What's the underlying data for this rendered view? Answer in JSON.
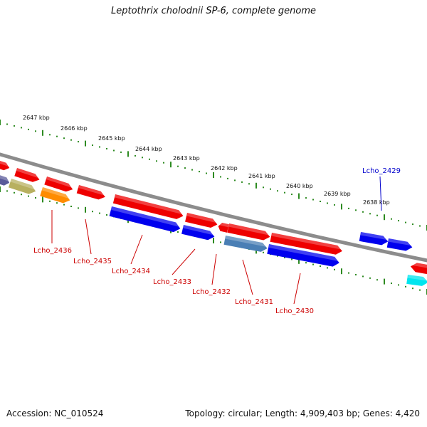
{
  "title": "Leptothrix cholodnii SP-6, complete genome",
  "footer": {
    "accession": "Accession: NC_010524",
    "summary": "Topology: circular; Length: 4,909,403 bp; Genes: 4,420"
  },
  "scale_labels": [
    "2647 kbp",
    "2646 kbp",
    "2645 kbp",
    "2644 kbp",
    "2643 kbp",
    "2642 kbp",
    "2641 kbp",
    "2640 kbp",
    "2639 kbp",
    "2638 kbp"
  ],
  "gene_labels_forward": [
    "Lcho_2429"
  ],
  "gene_labels_reverse": [
    "Lcho_2436",
    "Lcho_2435",
    "Lcho_2434",
    "Lcho_2433",
    "Lcho_2432",
    "Lcho_2431",
    "Lcho_2430"
  ],
  "colors": {
    "backbone": "#8c8c8c",
    "scale_ticks": "#2e8b22",
    "gene_red": "#ee0000",
    "gene_blue": "#0000ee",
    "gene_steelblue": "#4a7fb5",
    "gene_orange": "#ff8c00",
    "gene_khaki": "#b8b060",
    "gene_purple": "#5a5a9a",
    "gene_cyan": "#00e5ee",
    "label_forward": "#0000cc",
    "label_reverse": "#cc0000"
  }
}
